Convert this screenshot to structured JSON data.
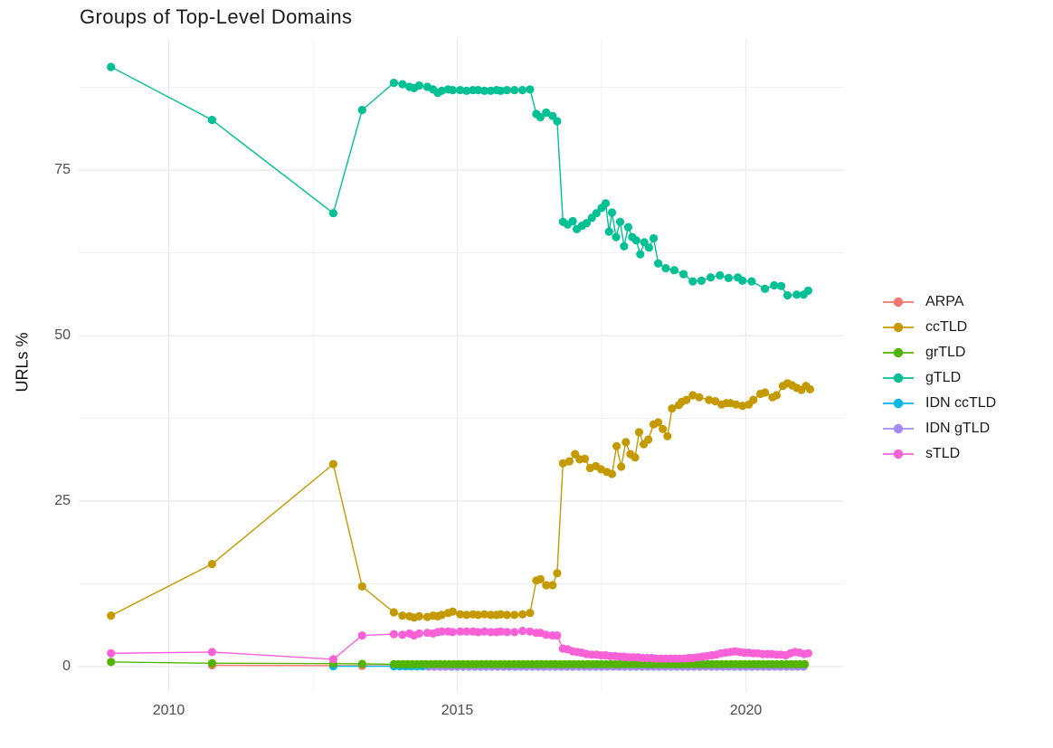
{
  "chart_data": {
    "type": "line",
    "title": "Groups of Top-Level Domains",
    "xlabel": "",
    "ylabel": "URLs %",
    "legend_position": "right",
    "grid": true,
    "xlim": [
      2008.44,
      2021.7
    ],
    "ylim": [
      -3.83,
      94.84
    ],
    "x_ticks": [
      {
        "label": "2010",
        "value": 2010
      },
      {
        "label": "2015",
        "value": 2015
      },
      {
        "label": "2020",
        "value": 2020
      }
    ],
    "y_ticks": [
      {
        "label": "0",
        "value": 0
      },
      {
        "label": "25",
        "value": 25
      },
      {
        "label": "50",
        "value": 50
      },
      {
        "label": "75",
        "value": 75
      }
    ],
    "x_minor": [
      2012.5,
      2017.5
    ],
    "y_minor": [
      12.5,
      37.5,
      62.5,
      87.5
    ],
    "grid_color": "#ebebeb",
    "tick_label_color": "#4d4d4d",
    "draw_order": [
      "ARPA",
      "IDN ccTLD",
      "IDN gTLD",
      "ccTLD",
      "gTLD",
      "grTLD",
      "sTLD"
    ],
    "series": [
      {
        "name": "ARPA",
        "color": "#F8766D",
        "points": [
          [
            2010.75,
            0.2
          ],
          [
            2012.85,
            0.15
          ],
          [
            2013.35,
            0.12
          ]
        ],
        "flat": {
          "from": 2013.9,
          "to": 2021.08,
          "step": 0.12,
          "value": 0.1
        }
      },
      {
        "name": "ccTLD",
        "color": "#C49A00",
        "points": [
          [
            2009.0,
            7.7
          ],
          [
            2010.75,
            15.5
          ],
          [
            2012.85,
            30.6
          ],
          [
            2013.35,
            12.1
          ],
          [
            2013.9,
            8.2
          ],
          [
            2014.05,
            7.7
          ],
          [
            2014.17,
            7.6
          ],
          [
            2014.25,
            7.4
          ],
          [
            2014.34,
            7.6
          ],
          [
            2014.48,
            7.5
          ],
          [
            2014.58,
            7.7
          ],
          [
            2014.66,
            7.6
          ],
          [
            2014.73,
            7.8
          ],
          [
            2014.84,
            8.1
          ],
          [
            2014.92,
            8.3
          ],
          [
            2015.05,
            7.9
          ],
          [
            2015.16,
            7.8
          ],
          [
            2015.27,
            7.9
          ],
          [
            2015.36,
            7.8
          ],
          [
            2015.47,
            7.9
          ],
          [
            2015.58,
            7.8
          ],
          [
            2015.68,
            7.8
          ],
          [
            2015.75,
            7.9
          ],
          [
            2015.86,
            7.8
          ],
          [
            2015.99,
            7.8
          ],
          [
            2016.13,
            7.9
          ],
          [
            2016.26,
            8.1
          ],
          [
            2016.37,
            13.0
          ],
          [
            2016.44,
            13.2
          ],
          [
            2016.54,
            12.3
          ],
          [
            2016.65,
            12.3
          ],
          [
            2016.73,
            14.1
          ],
          [
            2016.83,
            30.7
          ],
          [
            2016.94,
            31.0
          ],
          [
            2017.04,
            32.1
          ],
          [
            2017.12,
            31.3
          ],
          [
            2017.21,
            31.4
          ],
          [
            2017.3,
            30.0
          ],
          [
            2017.4,
            30.3
          ],
          [
            2017.49,
            29.8
          ],
          [
            2017.59,
            29.4
          ],
          [
            2017.68,
            29.1
          ],
          [
            2017.76,
            33.3
          ],
          [
            2017.84,
            30.2
          ],
          [
            2017.92,
            33.9
          ],
          [
            2018.0,
            32.1
          ],
          [
            2018.08,
            31.6
          ],
          [
            2018.15,
            35.4
          ],
          [
            2018.23,
            33.6
          ],
          [
            2018.31,
            34.3
          ],
          [
            2018.4,
            36.6
          ],
          [
            2018.48,
            36.9
          ],
          [
            2018.56,
            35.9
          ],
          [
            2018.64,
            34.8
          ],
          [
            2018.72,
            39.0
          ],
          [
            2018.84,
            39.5
          ],
          [
            2018.89,
            40.0
          ],
          [
            2018.97,
            40.3
          ],
          [
            2019.08,
            41.0
          ],
          [
            2019.19,
            40.7
          ],
          [
            2019.36,
            40.3
          ],
          [
            2019.47,
            40.1
          ],
          [
            2019.58,
            39.6
          ],
          [
            2019.66,
            39.8
          ],
          [
            2019.73,
            39.8
          ],
          [
            2019.83,
            39.6
          ],
          [
            2019.94,
            39.4
          ],
          [
            2020.05,
            39.6
          ],
          [
            2020.13,
            40.3
          ],
          [
            2020.25,
            41.2
          ],
          [
            2020.33,
            41.4
          ],
          [
            2020.46,
            40.7
          ],
          [
            2020.53,
            41.0
          ],
          [
            2020.64,
            42.4
          ],
          [
            2020.72,
            42.8
          ],
          [
            2020.8,
            42.5
          ],
          [
            2020.88,
            42.1
          ],
          [
            2020.96,
            41.8
          ],
          [
            2021.04,
            42.4
          ],
          [
            2021.11,
            41.9
          ]
        ]
      },
      {
        "name": "grTLD",
        "color": "#53B400",
        "points": [
          [
            2009.0,
            0.7
          ],
          [
            2010.75,
            0.5
          ],
          [
            2012.85,
            0.45
          ],
          [
            2013.35,
            0.4
          ]
        ],
        "flat": {
          "from": 2013.9,
          "to": 2021.08,
          "step": 0.08,
          "value": 0.35
        }
      },
      {
        "name": "gTLD",
        "color": "#00C094",
        "points": [
          [
            2009.0,
            90.6
          ],
          [
            2010.75,
            82.6
          ],
          [
            2012.85,
            68.5
          ],
          [
            2013.35,
            84.1
          ],
          [
            2013.9,
            88.2
          ],
          [
            2014.05,
            88.0
          ],
          [
            2014.17,
            87.6
          ],
          [
            2014.25,
            87.4
          ],
          [
            2014.34,
            87.8
          ],
          [
            2014.48,
            87.6
          ],
          [
            2014.58,
            87.2
          ],
          [
            2014.66,
            86.7
          ],
          [
            2014.73,
            87.0
          ],
          [
            2014.84,
            87.2
          ],
          [
            2014.92,
            87.1
          ],
          [
            2015.05,
            87.1
          ],
          [
            2015.16,
            87.0
          ],
          [
            2015.27,
            87.1
          ],
          [
            2015.36,
            87.1
          ],
          [
            2015.47,
            87.0
          ],
          [
            2015.58,
            87.0
          ],
          [
            2015.68,
            87.1
          ],
          [
            2015.75,
            87.0
          ],
          [
            2015.86,
            87.1
          ],
          [
            2015.99,
            87.1
          ],
          [
            2016.13,
            87.1
          ],
          [
            2016.26,
            87.2
          ],
          [
            2016.37,
            83.5
          ],
          [
            2016.44,
            83.0
          ],
          [
            2016.54,
            83.7
          ],
          [
            2016.65,
            83.2
          ],
          [
            2016.73,
            82.4
          ],
          [
            2016.83,
            67.2
          ],
          [
            2016.91,
            66.8
          ],
          [
            2017.0,
            67.3
          ],
          [
            2017.07,
            66.1
          ],
          [
            2017.16,
            66.6
          ],
          [
            2017.24,
            67.0
          ],
          [
            2017.33,
            67.8
          ],
          [
            2017.41,
            68.5
          ],
          [
            2017.5,
            69.3
          ],
          [
            2017.57,
            70.0
          ],
          [
            2017.63,
            65.7
          ],
          [
            2017.68,
            68.6
          ],
          [
            2017.75,
            64.9
          ],
          [
            2017.82,
            67.2
          ],
          [
            2017.89,
            63.5
          ],
          [
            2017.96,
            66.4
          ],
          [
            2018.03,
            64.9
          ],
          [
            2018.1,
            64.4
          ],
          [
            2018.17,
            62.3
          ],
          [
            2018.24,
            64.1
          ],
          [
            2018.32,
            63.3
          ],
          [
            2018.4,
            64.7
          ],
          [
            2018.48,
            60.9
          ],
          [
            2018.61,
            60.2
          ],
          [
            2018.76,
            59.9
          ],
          [
            2018.92,
            59.3
          ],
          [
            2019.08,
            58.2
          ],
          [
            2019.23,
            58.3
          ],
          [
            2019.39,
            58.8
          ],
          [
            2019.55,
            59.1
          ],
          [
            2019.7,
            58.7
          ],
          [
            2019.86,
            58.8
          ],
          [
            2019.94,
            58.3
          ],
          [
            2020.1,
            58.2
          ],
          [
            2020.33,
            57.1
          ],
          [
            2020.49,
            57.6
          ],
          [
            2020.61,
            57.5
          ],
          [
            2020.72,
            56.1
          ],
          [
            2020.88,
            56.2
          ],
          [
            2021.0,
            56.2
          ],
          [
            2021.08,
            56.8
          ]
        ]
      },
      {
        "name": "IDN ccTLD",
        "color": "#00B6EB",
        "points": [
          [
            2012.85,
            0.05
          ]
        ],
        "flat": {
          "from": 2013.9,
          "to": 2021.08,
          "step": 0.1,
          "value": 0.05
        }
      },
      {
        "name": "IDN gTLD",
        "color": "#A58AFF",
        "points": [],
        "flat": {
          "from": 2014.5,
          "to": 2021.08,
          "step": 0.1,
          "value": 0.0
        }
      },
      {
        "name": "sTLD",
        "color": "#FB61D7",
        "points": [
          [
            2009.0,
            2.0
          ],
          [
            2010.75,
            2.2
          ],
          [
            2012.85,
            1.1
          ],
          [
            2013.35,
            4.7
          ],
          [
            2013.9,
            4.9
          ],
          [
            2014.05,
            4.8
          ],
          [
            2014.17,
            5.0
          ],
          [
            2014.25,
            4.7
          ],
          [
            2014.34,
            5.0
          ],
          [
            2014.48,
            5.1
          ],
          [
            2014.58,
            5.0
          ],
          [
            2014.66,
            5.2
          ],
          [
            2014.73,
            5.3
          ],
          [
            2014.84,
            5.3
          ],
          [
            2014.92,
            5.2
          ],
          [
            2015.05,
            5.3
          ],
          [
            2015.16,
            5.3
          ],
          [
            2015.27,
            5.3
          ],
          [
            2015.36,
            5.2
          ],
          [
            2015.47,
            5.3
          ],
          [
            2015.58,
            5.2
          ],
          [
            2015.68,
            5.2
          ],
          [
            2015.75,
            5.3
          ],
          [
            2015.86,
            5.2
          ],
          [
            2015.99,
            5.2
          ],
          [
            2016.13,
            5.4
          ],
          [
            2016.26,
            5.3
          ],
          [
            2016.37,
            5.1
          ],
          [
            2016.44,
            5.1
          ],
          [
            2016.54,
            4.8
          ],
          [
            2016.65,
            4.7
          ],
          [
            2016.73,
            4.7
          ],
          [
            2016.83,
            2.7
          ],
          [
            2016.91,
            2.6
          ],
          [
            2017.0,
            2.3
          ],
          [
            2017.08,
            2.2
          ],
          [
            2017.16,
            2.1
          ],
          [
            2017.24,
            1.9
          ],
          [
            2017.33,
            1.8
          ],
          [
            2017.41,
            1.8
          ],
          [
            2017.49,
            1.7
          ],
          [
            2017.57,
            1.7
          ],
          [
            2017.65,
            1.6
          ],
          [
            2017.73,
            1.6
          ],
          [
            2017.81,
            1.5
          ],
          [
            2017.89,
            1.5
          ],
          [
            2017.97,
            1.4
          ],
          [
            2018.05,
            1.4
          ],
          [
            2018.13,
            1.4
          ],
          [
            2018.21,
            1.3
          ],
          [
            2018.29,
            1.3
          ],
          [
            2018.37,
            1.3
          ],
          [
            2018.45,
            1.2
          ],
          [
            2018.53,
            1.2
          ],
          [
            2018.61,
            1.2
          ],
          [
            2018.69,
            1.2
          ],
          [
            2018.77,
            1.2
          ],
          [
            2018.85,
            1.2
          ],
          [
            2018.93,
            1.2
          ],
          [
            2019.01,
            1.3
          ],
          [
            2019.09,
            1.3
          ],
          [
            2019.17,
            1.4
          ],
          [
            2019.25,
            1.5
          ],
          [
            2019.33,
            1.6
          ],
          [
            2019.41,
            1.7
          ],
          [
            2019.49,
            1.8
          ],
          [
            2019.57,
            2.0
          ],
          [
            2019.65,
            2.1
          ],
          [
            2019.73,
            2.2
          ],
          [
            2019.81,
            2.3
          ],
          [
            2019.89,
            2.2
          ],
          [
            2019.97,
            2.1
          ],
          [
            2020.05,
            2.1
          ],
          [
            2020.13,
            2.0
          ],
          [
            2020.21,
            2.0
          ],
          [
            2020.29,
            1.9
          ],
          [
            2020.37,
            1.9
          ],
          [
            2020.45,
            1.9
          ],
          [
            2020.53,
            1.8
          ],
          [
            2020.61,
            1.8
          ],
          [
            2020.69,
            1.7
          ],
          [
            2020.77,
            2.0
          ],
          [
            2020.85,
            2.2
          ],
          [
            2020.93,
            2.1
          ],
          [
            2021.01,
            1.9
          ],
          [
            2021.08,
            2.0
          ]
        ]
      }
    ]
  }
}
